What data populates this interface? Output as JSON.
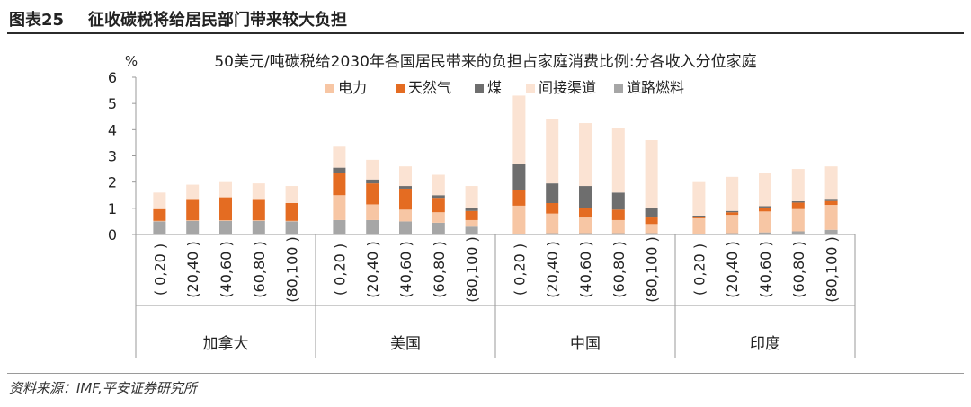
{
  "header": {
    "figure_label": "图表25",
    "figure_title": "征收碳税将给居民部门带来较大负担"
  },
  "footer": {
    "source": "资料来源：IMF,平安证券研究所"
  },
  "chart_data": {
    "type": "bar",
    "stacked": true,
    "title": "50美元/吨碳税给2030年各国居民带来的负担占家庭消费比例:分各收入分位家庭",
    "ylabel": "%",
    "ylim": [
      0,
      6
    ],
    "yticks": [
      0,
      1,
      2,
      3,
      4,
      5,
      6
    ],
    "legend_position": "top",
    "groups": [
      "加拿大",
      "美国",
      "中国",
      "印度"
    ],
    "categories": [
      "( 0,20 )",
      "(20,40 )",
      "(40,60 )",
      "(60,80 )",
      "(80,100 )"
    ],
    "series": [
      {
        "name": "道路燃料",
        "color": "#a6a6a6",
        "values": [
          [
            0.5,
            0.52,
            0.52,
            0.52,
            0.5
          ],
          [
            0.55,
            0.55,
            0.5,
            0.45,
            0.3
          ],
          [
            0.0,
            0.05,
            0.05,
            0.05,
            0.05
          ],
          [
            0.02,
            0.05,
            0.08,
            0.12,
            0.18
          ]
        ]
      },
      {
        "name": "电力",
        "color": "#f7c6a4",
        "values": [
          [
            0.02,
            0.02,
            0.02,
            0.02,
            0.02
          ],
          [
            0.95,
            0.6,
            0.45,
            0.4,
            0.25
          ],
          [
            1.1,
            0.75,
            0.6,
            0.5,
            0.35
          ],
          [
            0.6,
            0.7,
            0.8,
            0.85,
            0.95
          ]
        ]
      },
      {
        "name": "天然气",
        "color": "#e46c22",
        "values": [
          [
            0.45,
            0.78,
            0.88,
            0.78,
            0.68
          ],
          [
            0.85,
            0.8,
            0.8,
            0.55,
            0.35
          ],
          [
            0.6,
            0.4,
            0.35,
            0.4,
            0.25
          ],
          [
            0.05,
            0.1,
            0.15,
            0.25,
            0.15
          ]
        ]
      },
      {
        "name": "煤",
        "color": "#6e6e6e",
        "values": [
          [
            0.0,
            0.0,
            0.0,
            0.0,
            0.0
          ],
          [
            0.2,
            0.15,
            0.1,
            0.1,
            0.1
          ],
          [
            1.0,
            0.75,
            0.85,
            0.65,
            0.35
          ],
          [
            0.05,
            0.05,
            0.05,
            0.05,
            0.05
          ]
        ]
      },
      {
        "name": "间接渠道",
        "color": "#fbe3d3",
        "values": [
          [
            0.63,
            0.58,
            0.58,
            0.63,
            0.65
          ],
          [
            0.8,
            0.75,
            0.75,
            0.78,
            0.85
          ],
          [
            2.6,
            2.45,
            2.4,
            2.45,
            2.6
          ],
          [
            1.28,
            1.3,
            1.27,
            1.23,
            1.27
          ]
        ]
      }
    ],
    "legend_order": [
      "电力",
      "天然气",
      "煤",
      "间接渠道",
      "道路燃料"
    ]
  }
}
